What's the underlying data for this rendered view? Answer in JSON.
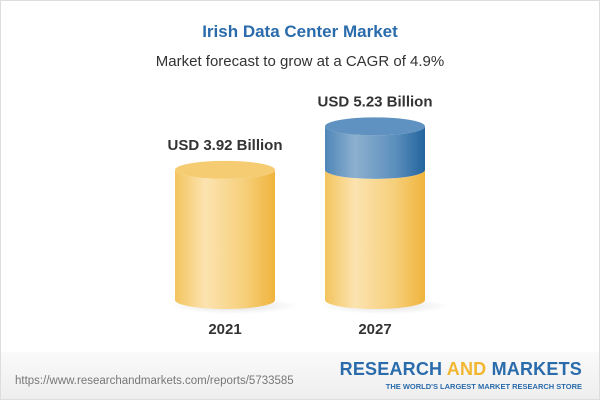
{
  "title": "Irish Data Center Market",
  "subtitle": "Market forecast to grow at a CAGR of 4.9%",
  "chart_data": {
    "type": "bar",
    "style": "3d-cylinder",
    "categories": [
      "2021",
      "2027"
    ],
    "values": [
      3.92,
      5.23
    ],
    "data_labels": [
      "USD 3.92 Billion",
      "USD 5.23 Billion"
    ],
    "unit": "USD Billion",
    "colors": {
      "base": "#f2c462",
      "growth": "#4a82b4"
    }
  },
  "footer": {
    "url": "https://www.researchandmarkets.com/reports/5733585",
    "brand_part1": "RESEARCH ",
    "brand_part2": "AND",
    "brand_part3": " MARKETS",
    "tagline": "THE WORLD'S LARGEST MARKET RESEARCH STORE"
  }
}
